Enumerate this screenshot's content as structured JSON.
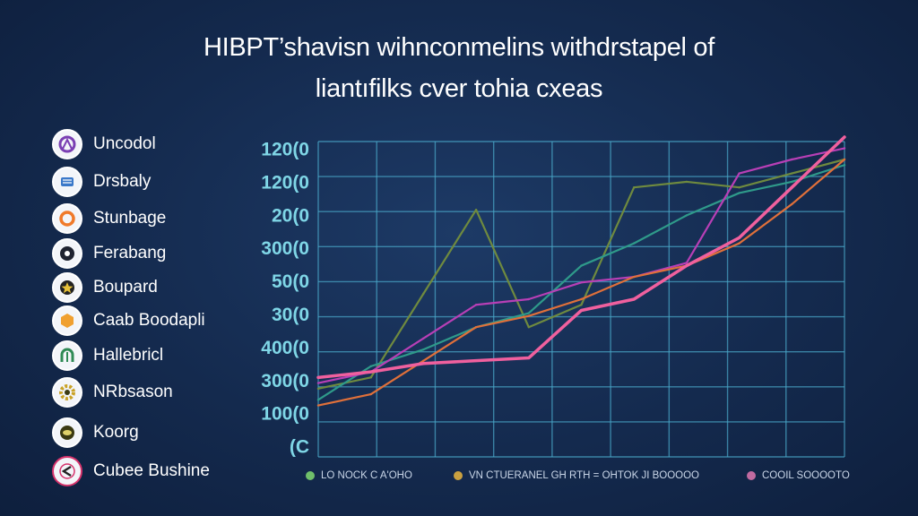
{
  "title_lines": [
    "HIBPT’shavisn wihnconmelins withdrstapel of",
    "liantıfilks cver tohia cxeas"
  ],
  "sidebar_legend": [
    {
      "label": "Uncodol",
      "icon": "purple-emblem-icon",
      "color": "#7b3fb3"
    },
    {
      "label": "Drsbaly",
      "icon": "blue-crest-icon",
      "color": "#3a78c9"
    },
    {
      "label": "Stunbage",
      "icon": "orange-ring-icon",
      "color": "#f07a2a"
    },
    {
      "label": "Ferabang",
      "icon": "dark-badge-icon",
      "color": "#1f2330"
    },
    {
      "label": "Boupard",
      "icon": "star-badge-icon",
      "color": "#222222"
    },
    {
      "label": "Caab Boodapli",
      "icon": "orange-hex-icon",
      "color": "#f0a030"
    },
    {
      "label": "Hallebricl",
      "icon": "green-arch-icon",
      "color": "#2f8a55"
    },
    {
      "label": "NRbsason",
      "icon": "gold-gear-icon",
      "color": "#c9a227"
    },
    {
      "label": "Koorg",
      "icon": "olive-disc-icon",
      "color": "#3b3a12"
    },
    {
      "label": "Cubee Bushine",
      "icon": "pink-swirl-icon",
      "color": "#d6336c"
    }
  ],
  "chart_data": {
    "type": "line",
    "y_tick_labels": [
      "120(0",
      "120(0",
      "20(0",
      "300(0",
      "50(0",
      "30(0",
      "400(0",
      "300(0",
      "100(0",
      "(C"
    ],
    "x": [
      0,
      1,
      2,
      3,
      4,
      5,
      6,
      7,
      8,
      9,
      10
    ],
    "xlim": [
      0,
      10
    ],
    "ylim": [
      0,
      100
    ],
    "grid": true,
    "series": [
      {
        "color": "#6f8a3f",
        "values": [
          18,
          22,
          52,
          82,
          40,
          48,
          90,
          92,
          90,
          95,
          100
        ]
      },
      {
        "color": "#2f9a8a",
        "values": [
          14,
          26,
          32,
          40,
          45,
          62,
          70,
          80,
          88,
          92,
          98
        ]
      },
      {
        "color": "#b83fb6",
        "values": [
          20,
          24,
          36,
          48,
          50,
          56,
          58,
          63,
          95,
          100,
          104
        ]
      },
      {
        "color": "#e0703a",
        "values": [
          12,
          16,
          28,
          40,
          44,
          50,
          58,
          62,
          70,
          84,
          100
        ]
      },
      {
        "color": "#f0609e",
        "values": [
          22,
          24,
          27,
          28,
          29,
          46,
          50,
          62,
          72,
          90,
          108
        ]
      }
    ],
    "legend_items": [
      {
        "label": "LO NOCK C A'OHO",
        "color": "#6fbf6a"
      },
      {
        "label": "VN CTUERANEL GH RTH = OHTOK JI BOOOOO",
        "color": "#c9a040"
      },
      {
        "label": "COOIL SOOOOTO",
        "color": "#c06aa0"
      }
    ],
    "legend_position": "bottom"
  }
}
